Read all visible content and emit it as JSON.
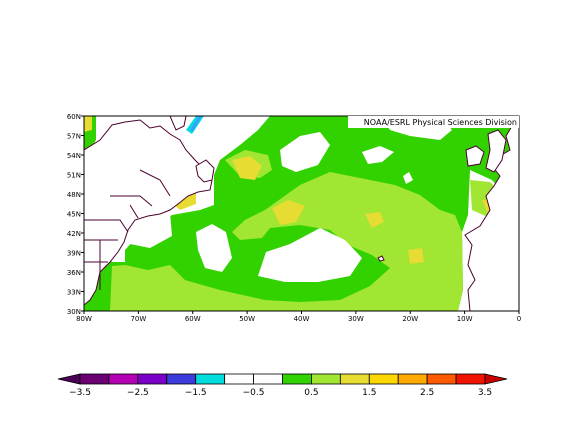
{
  "map": {
    "credit": "NOAA/ESRL Physical Sciences Division",
    "lat_ticks": [
      "60N",
      "57N",
      "54N",
      "51N",
      "48N",
      "45N",
      "42N",
      "39N",
      "36N",
      "33N",
      "30N"
    ],
    "lon_ticks": [
      "80W",
      "70W",
      "60W",
      "50W",
      "40W",
      "30W",
      "20W",
      "10W",
      "0"
    ],
    "lat_range": [
      30,
      60
    ],
    "lon_range": [
      -80,
      0
    ],
    "land_color": "#ffffff",
    "coast_color": "#4b0030"
  },
  "colorbar": {
    "labels": [
      "-3.5",
      "-2.5",
      "-1.5",
      "-0.5",
      "0.5",
      "1.5",
      "2.5",
      "3.5"
    ],
    "colors": [
      "#6b0073",
      "#b400b4",
      "#7a00c8",
      "#3c3cdc",
      "#00dcdc",
      "#ffffff",
      "#ffffff",
      "#32d200",
      "#a0e632",
      "#e6dc32",
      "#ffd700",
      "#ffaa00",
      "#ff5a00",
      "#f01400"
    ],
    "under_color": "#4b0055",
    "over_color": "#c80000"
  }
}
